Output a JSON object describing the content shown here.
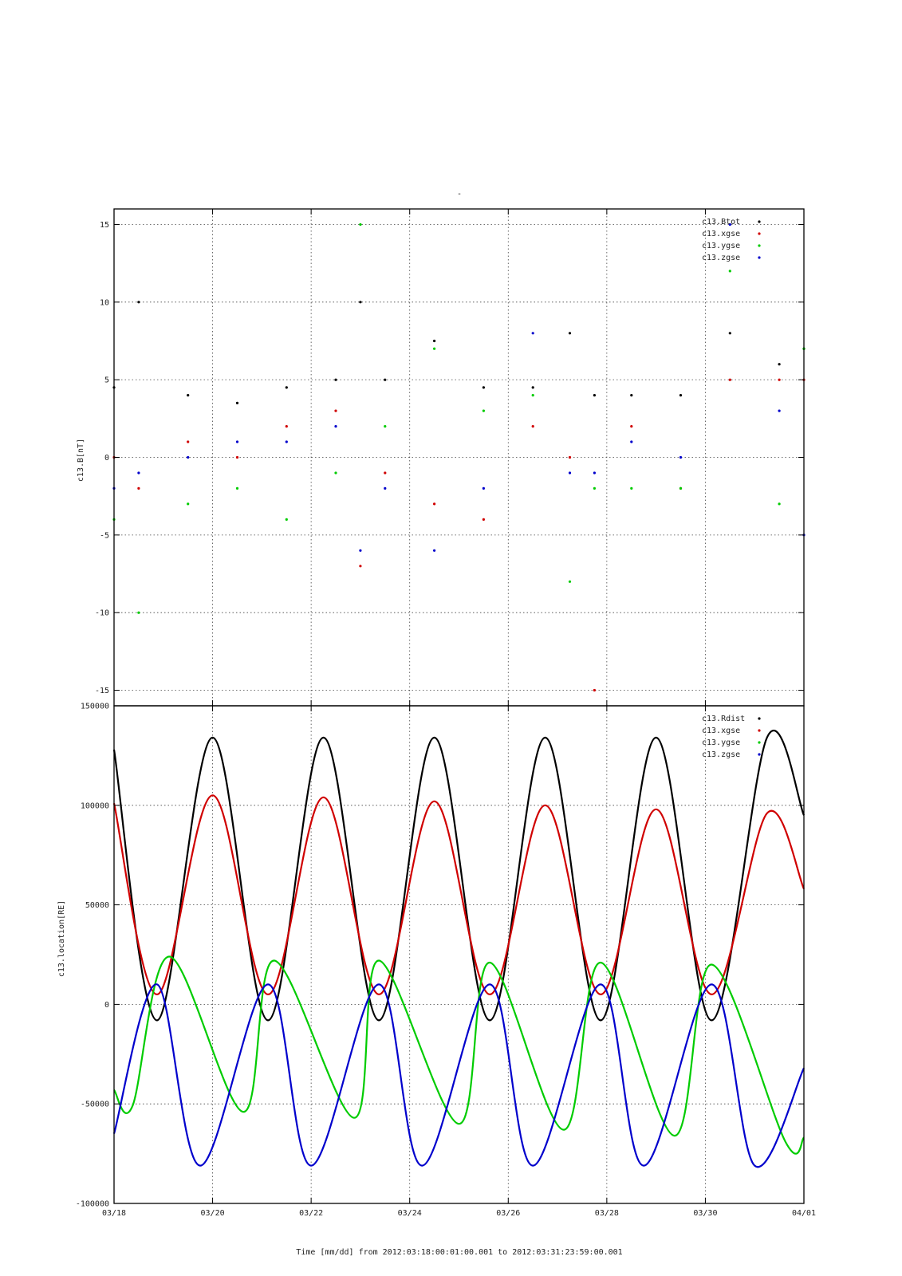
{
  "title_mark": "-",
  "xlabel": "Time [mm/dd]  from 2012:03:18:00:01:00.001  to  2012:03:31:23:59:00.001",
  "x_ticks": [
    "03/18",
    "03/20",
    "03/22",
    "03/24",
    "03/26",
    "03/28",
    "03/30",
    "04/01"
  ],
  "colors": {
    "black": "#000000",
    "red": "#d00000",
    "green": "#00cc00",
    "blue": "#0000cc"
  },
  "chart_data": [
    {
      "type": "scatter",
      "ylabel": "c13.B[nT]",
      "ylim": [
        -16,
        16
      ],
      "y_ticks": [
        -15,
        -10,
        -5,
        0,
        5,
        10,
        15
      ],
      "grid": true,
      "legend_position": "top-right",
      "series": [
        {
          "name": "c13.Btot",
          "color": "#000000",
          "x": [
            "03/18",
            "03/18 12h",
            "03/19 12h",
            "03/20 12h",
            "03/21 12h",
            "03/22 12h",
            "03/23",
            "03/23 12h",
            "03/24 12h",
            "03/25 12h",
            "03/26 12h",
            "03/27 06h",
            "03/27 18h",
            "03/28 12h",
            "03/29 12h",
            "03/30 12h",
            "03/31 12h",
            "04/01"
          ],
          "values": [
            4.5,
            10,
            4,
            3.5,
            4.5,
            5,
            10,
            5,
            7.5,
            4.5,
            4.5,
            8,
            4,
            4,
            4,
            8,
            6,
            7
          ]
        },
        {
          "name": "c13.xgse",
          "color": "#d00000",
          "x": [
            "03/18",
            "03/18 12h",
            "03/19 12h",
            "03/20 12h",
            "03/21 12h",
            "03/22 12h",
            "03/23",
            "03/23 12h",
            "03/24 12h",
            "03/25 12h",
            "03/26 12h",
            "03/27 06h",
            "03/27 18h",
            "03/28 12h",
            "03/29 12h",
            "03/30 12h",
            "03/31 12h",
            "04/01"
          ],
          "values": [
            0,
            -2,
            1,
            0,
            2,
            3,
            -7,
            -1,
            -3,
            -4,
            2,
            0,
            -15,
            2,
            -2,
            5,
            5,
            5
          ]
        },
        {
          "name": "c13.ygse",
          "color": "#00cc00",
          "x": [
            "03/18",
            "03/18 12h",
            "03/19 12h",
            "03/20 12h",
            "03/21 12h",
            "03/22 12h",
            "03/23",
            "03/23 12h",
            "03/24 12h",
            "03/25 12h",
            "03/26 12h",
            "03/27 06h",
            "03/27 18h",
            "03/28 12h",
            "03/29 12h",
            "03/30 12h",
            "03/31 12h",
            "04/01"
          ],
          "values": [
            -4,
            -10,
            -3,
            -2,
            -4,
            -1,
            15,
            2,
            7,
            3,
            4,
            -8,
            -2,
            -2,
            -2,
            12,
            -3,
            7
          ]
        },
        {
          "name": "c13.zgse",
          "color": "#0000cc",
          "x": [
            "03/18",
            "03/18 12h",
            "03/19 12h",
            "03/20 12h",
            "03/21 12h",
            "03/22 12h",
            "03/23",
            "03/23 12h",
            "03/24 12h",
            "03/25 12h",
            "03/26 12h",
            "03/27 06h",
            "03/27 18h",
            "03/28 12h",
            "03/29 12h",
            "03/30 12h",
            "03/31 12h",
            "04/01"
          ],
          "values": [
            -2,
            -1,
            0,
            1,
            1,
            2,
            -6,
            -2,
            -6,
            -2,
            8,
            -1,
            -1,
            1,
            0,
            15,
            3,
            -5
          ]
        }
      ]
    },
    {
      "type": "line",
      "ylabel": "c13.location[RE]",
      "ylim": [
        -100000,
        150000
      ],
      "y_ticks": [
        -100000,
        -50000,
        0,
        50000,
        100000,
        150000
      ],
      "grid": true,
      "legend_position": "top-right",
      "series": [
        {
          "name": "c13.Rdist",
          "color": "#000000",
          "description_range": [
            -8000,
            134000
          ],
          "x": [
            "03/18",
            "03/18 21h",
            "03/20",
            "03/21 03h",
            "03/22 06h",
            "03/23 09h",
            "03/24 12h",
            "03/25 15h",
            "03/26 18h",
            "03/27 21h",
            "03/29",
            "03/30 03h",
            "03/31 06h",
            "04/01"
          ],
          "values": [
            128000,
            -8000,
            134000,
            -8000,
            134000,
            -8000,
            134000,
            -8000,
            134000,
            -8000,
            134000,
            -8000,
            134000,
            95000
          ]
        },
        {
          "name": "c13.xgse",
          "color": "#d00000",
          "x": [
            "03/18",
            "03/18 21h",
            "03/20",
            "03/21 03h",
            "03/22 06h",
            "03/23 09h",
            "03/24 12h",
            "03/25 15h",
            "03/26 18h",
            "03/27 21h",
            "03/29",
            "03/30 03h",
            "03/31 06h",
            "04/01"
          ],
          "values": [
            101000,
            5000,
            105000,
            5000,
            104000,
            5000,
            102000,
            5000,
            100000,
            5000,
            98000,
            5000,
            96000,
            58000
          ]
        },
        {
          "name": "c13.ygse",
          "color": "#00cc00",
          "x": [
            "03/18",
            "03/18 09h",
            "03/19 03h",
            "03/20 15h",
            "03/21 06h",
            "03/22 21h",
            "03/23 09h",
            "03/25",
            "03/25 15h",
            "03/27 03h",
            "03/27 21h",
            "03/29 09h",
            "03/30 03h",
            "03/31 15h",
            "04/01"
          ],
          "values": [
            -43000,
            -51000,
            24000,
            -54000,
            22000,
            -57000,
            22000,
            -60000,
            21000,
            -63000,
            21000,
            -66000,
            20000,
            -69000,
            -67000
          ]
        },
        {
          "name": "c13.zgse",
          "color": "#0000cc",
          "x": [
            "03/18",
            "03/18 21h",
            "03/19 18h",
            "03/21 03h",
            "03/22",
            "03/23 09h",
            "03/24 06h",
            "03/25 15h",
            "03/26 12h",
            "03/27 21h",
            "03/28 18h",
            "03/30 03h",
            "03/31",
            "04/01"
          ],
          "values": [
            -65000,
            10000,
            -81000,
            10000,
            -81000,
            10000,
            -81000,
            10000,
            -81000,
            10000,
            -81000,
            10000,
            -81000,
            -32000
          ]
        }
      ]
    }
  ]
}
